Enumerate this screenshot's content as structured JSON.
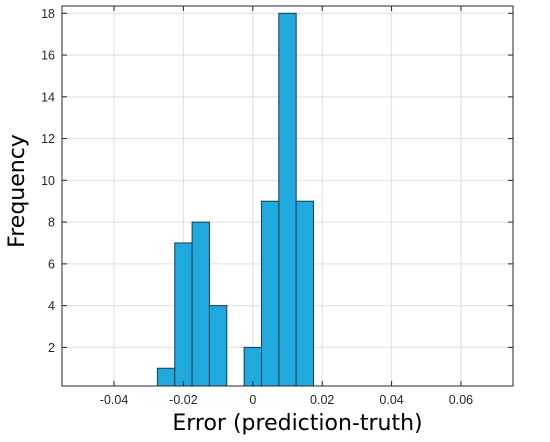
{
  "chart_data": {
    "type": "bar",
    "title": "",
    "xlabel": "Error (prediction-truth)",
    "ylabel": "Frequency",
    "xlim": [
      -0.055,
      0.075
    ],
    "ylim": [
      0.15,
      18.35
    ],
    "grid": true,
    "bin_width": 0.005,
    "bins": [
      {
        "start": -0.0275,
        "end": -0.0225,
        "count": 1
      },
      {
        "start": -0.0225,
        "end": -0.0175,
        "count": 7
      },
      {
        "start": -0.0175,
        "end": -0.0125,
        "count": 8
      },
      {
        "start": -0.0125,
        "end": -0.0075,
        "count": 4
      },
      {
        "start": -0.0075,
        "end": -0.0025,
        "count": 0
      },
      {
        "start": -0.0025,
        "end": 0.0025,
        "count": 2
      },
      {
        "start": 0.0025,
        "end": 0.0075,
        "count": 9
      },
      {
        "start": 0.0075,
        "end": 0.0125,
        "count": 18
      },
      {
        "start": 0.0125,
        "end": 0.0175,
        "count": 9
      }
    ],
    "xticks": [
      -0.04,
      -0.02,
      0,
      0.02,
      0.04,
      0.06
    ],
    "xtick_labels": [
      "-0.04",
      "-0.02",
      "0",
      "0.02",
      "0.04",
      "0.06"
    ],
    "yticks": [
      2,
      4,
      6,
      8,
      10,
      12,
      14,
      16,
      18
    ],
    "ytick_labels": [
      "2",
      "4",
      "6",
      "8",
      "10",
      "12",
      "14",
      "16",
      "18"
    ],
    "colors": {
      "bar_fill": "#1fa9dc",
      "bar_edge": "#1a3a52",
      "grid": "#dfdfdf",
      "axes": "#262626"
    }
  }
}
